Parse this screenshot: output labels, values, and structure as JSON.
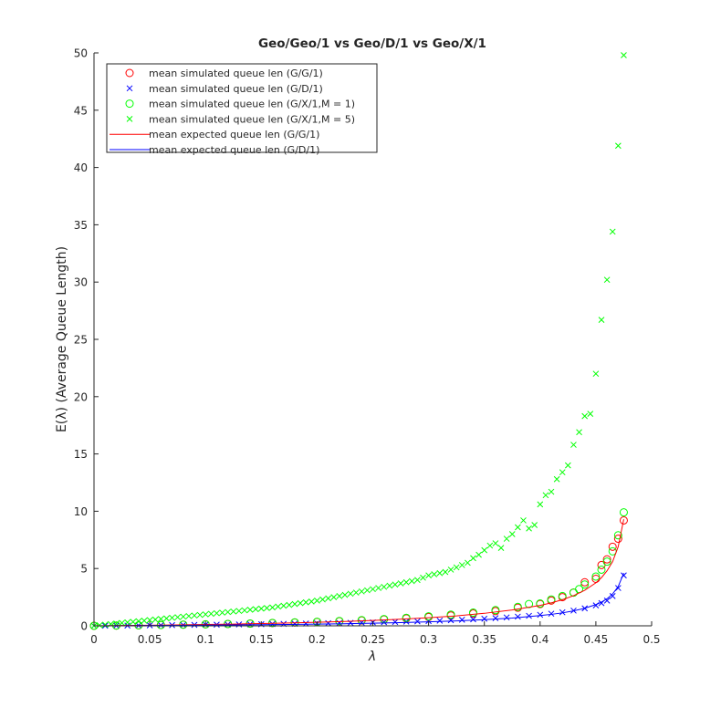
{
  "chart_data": {
    "type": "scatter",
    "title": "Geo/Geo/1 vs Geo/D/1 vs Geo/X/1",
    "xlabel": "λ",
    "ylabel": "E(λ) (Average Queue Length)",
    "xlim": [
      0,
      0.5
    ],
    "ylim": [
      0,
      50
    ],
    "xticks": [
      0,
      0.05,
      0.1,
      0.15,
      0.2,
      0.25,
      0.3,
      0.35,
      0.4,
      0.45,
      0.5
    ],
    "yticks": [
      0,
      5,
      10,
      15,
      20,
      25,
      30,
      35,
      40,
      45,
      50
    ],
    "grid": false,
    "legend_position": "top-left",
    "series": [
      {
        "name": "mean simulated queue len (G/G/1)",
        "marker": "circle",
        "color": "#ff0000",
        "x": [
          0,
          0.02,
          0.04,
          0.06,
          0.08,
          0.1,
          0.12,
          0.14,
          0.16,
          0.18,
          0.2,
          0.22,
          0.24,
          0.26,
          0.28,
          0.3,
          0.32,
          0.34,
          0.36,
          0.38,
          0.4,
          0.41,
          0.42,
          0.43,
          0.44,
          0.45,
          0.455,
          0.46,
          0.465,
          0.47,
          0.475
        ],
        "y": [
          0.0,
          0.02,
          0.04,
          0.07,
          0.1,
          0.13,
          0.16,
          0.19,
          0.24,
          0.29,
          0.34,
          0.4,
          0.47,
          0.56,
          0.65,
          0.77,
          0.9,
          1.07,
          1.28,
          1.58,
          1.9,
          2.2,
          2.5,
          2.9,
          3.8,
          4.1,
          5.3,
          5.8,
          6.9,
          7.6,
          9.2
        ]
      },
      {
        "name": "mean simulated queue len (G/D/1)",
        "marker": "x",
        "color": "#0000ff",
        "x": [
          0,
          0.01,
          0.02,
          0.03,
          0.04,
          0.05,
          0.06,
          0.07,
          0.08,
          0.09,
          0.1,
          0.11,
          0.12,
          0.13,
          0.14,
          0.15,
          0.16,
          0.17,
          0.18,
          0.19,
          0.2,
          0.21,
          0.22,
          0.23,
          0.24,
          0.25,
          0.26,
          0.27,
          0.28,
          0.29,
          0.3,
          0.31,
          0.32,
          0.33,
          0.34,
          0.35,
          0.36,
          0.37,
          0.38,
          0.39,
          0.4,
          0.41,
          0.42,
          0.43,
          0.44,
          0.45,
          0.455,
          0.46,
          0.465,
          0.47,
          0.475
        ],
        "y": [
          0.0,
          0.01,
          0.02,
          0.02,
          0.03,
          0.04,
          0.05,
          0.06,
          0.07,
          0.08,
          0.09,
          0.1,
          0.11,
          0.12,
          0.13,
          0.14,
          0.16,
          0.17,
          0.18,
          0.2,
          0.21,
          0.23,
          0.24,
          0.26,
          0.28,
          0.3,
          0.32,
          0.34,
          0.37,
          0.39,
          0.42,
          0.45,
          0.49,
          0.53,
          0.57,
          0.62,
          0.67,
          0.73,
          0.8,
          0.87,
          0.96,
          1.06,
          1.18,
          1.33,
          1.52,
          1.78,
          1.98,
          2.2,
          2.6,
          3.3,
          4.4
        ]
      },
      {
        "name": "mean simulated queue len (G/X/1,M = 1)",
        "marker": "circle",
        "color": "#00ff00",
        "x": [
          0,
          0.02,
          0.04,
          0.06,
          0.08,
          0.1,
          0.12,
          0.14,
          0.16,
          0.18,
          0.2,
          0.22,
          0.24,
          0.26,
          0.28,
          0.3,
          0.32,
          0.34,
          0.36,
          0.38,
          0.39,
          0.4,
          0.41,
          0.42,
          0.43,
          0.435,
          0.44,
          0.45,
          0.455,
          0.46,
          0.465,
          0.47,
          0.475
        ],
        "y": [
          0.0,
          0.02,
          0.04,
          0.07,
          0.1,
          0.13,
          0.16,
          0.2,
          0.25,
          0.3,
          0.35,
          0.42,
          0.5,
          0.59,
          0.7,
          0.83,
          0.98,
          1.15,
          1.37,
          1.65,
          1.9,
          1.95,
          2.3,
          2.6,
          2.9,
          3.2,
          3.6,
          4.3,
          4.9,
          5.6,
          6.5,
          7.9,
          9.9
        ]
      },
      {
        "name": "mean simulated queue len (G/X/1,M = 5)",
        "marker": "x",
        "color": "#00ff00",
        "x": [
          0,
          0.005,
          0.01,
          0.015,
          0.02,
          0.025,
          0.03,
          0.035,
          0.04,
          0.045,
          0.05,
          0.055,
          0.06,
          0.065,
          0.07,
          0.075,
          0.08,
          0.085,
          0.09,
          0.095,
          0.1,
          0.105,
          0.11,
          0.115,
          0.12,
          0.125,
          0.13,
          0.135,
          0.14,
          0.145,
          0.15,
          0.155,
          0.16,
          0.165,
          0.17,
          0.175,
          0.18,
          0.185,
          0.19,
          0.195,
          0.2,
          0.205,
          0.21,
          0.215,
          0.22,
          0.225,
          0.23,
          0.235,
          0.24,
          0.245,
          0.25,
          0.255,
          0.26,
          0.265,
          0.27,
          0.275,
          0.28,
          0.285,
          0.29,
          0.295,
          0.3,
          0.305,
          0.31,
          0.315,
          0.32,
          0.325,
          0.33,
          0.335,
          0.34,
          0.345,
          0.35,
          0.355,
          0.36,
          0.365,
          0.37,
          0.375,
          0.38,
          0.385,
          0.39,
          0.395,
          0.4,
          0.405,
          0.41,
          0.415,
          0.42,
          0.425,
          0.43,
          0.435,
          0.44,
          0.445,
          0.45,
          0.455,
          0.46,
          0.465,
          0.47,
          0.475
        ],
        "y": [
          0.0,
          0.05,
          0.1,
          0.15,
          0.2,
          0.25,
          0.3,
          0.35,
          0.4,
          0.45,
          0.5,
          0.55,
          0.6,
          0.65,
          0.7,
          0.75,
          0.8,
          0.85,
          0.9,
          0.95,
          1.0,
          1.05,
          1.1,
          1.15,
          1.2,
          1.25,
          1.3,
          1.35,
          1.4,
          1.45,
          1.5,
          1.55,
          1.6,
          1.68,
          1.75,
          1.82,
          1.9,
          1.98,
          2.05,
          2.12,
          2.2,
          2.3,
          2.4,
          2.5,
          2.6,
          2.7,
          2.8,
          2.9,
          3.0,
          3.1,
          3.2,
          3.3,
          3.4,
          3.5,
          3.6,
          3.7,
          3.8,
          3.9,
          4.0,
          4.2,
          4.4,
          4.5,
          4.6,
          4.7,
          4.9,
          5.1,
          5.3,
          5.5,
          5.9,
          6.2,
          6.6,
          7.0,
          7.2,
          6.8,
          7.6,
          8.0,
          8.6,
          9.2,
          8.5,
          8.8,
          10.6,
          11.4,
          11.7,
          12.8,
          13.4,
          14.0,
          15.8,
          16.9,
          18.3,
          18.5,
          22.0,
          26.7,
          30.2,
          34.4,
          41.9,
          49.8
        ]
      },
      {
        "name": "mean expected queue len (G/G/1)",
        "marker": "line",
        "color": "#ff0000",
        "x": [
          0,
          0.025,
          0.05,
          0.075,
          0.1,
          0.125,
          0.15,
          0.175,
          0.2,
          0.225,
          0.25,
          0.275,
          0.3,
          0.325,
          0.35,
          0.375,
          0.4,
          0.41,
          0.42,
          0.43,
          0.44,
          0.45,
          0.455,
          0.46,
          0.465,
          0.47,
          0.475
        ],
        "y": [
          0,
          0.03,
          0.05,
          0.08,
          0.12,
          0.15,
          0.2,
          0.25,
          0.31,
          0.38,
          0.47,
          0.58,
          0.71,
          0.87,
          1.09,
          1.38,
          1.78,
          2.0,
          2.28,
          2.63,
          3.1,
          3.75,
          4.2,
          4.8,
          5.6,
          6.9,
          9.3
        ]
      },
      {
        "name": "mean expected queue len (G/D/1)",
        "marker": "line",
        "color": "#0000ff",
        "x": [
          0,
          0.025,
          0.05,
          0.075,
          0.1,
          0.125,
          0.15,
          0.175,
          0.2,
          0.225,
          0.25,
          0.275,
          0.3,
          0.325,
          0.35,
          0.375,
          0.4,
          0.41,
          0.42,
          0.43,
          0.44,
          0.45,
          0.455,
          0.46,
          0.465,
          0.47,
          0.475
        ],
        "y": [
          0,
          0.01,
          0.03,
          0.04,
          0.06,
          0.08,
          0.1,
          0.12,
          0.15,
          0.18,
          0.23,
          0.28,
          0.35,
          0.43,
          0.54,
          0.68,
          0.9,
          1.0,
          1.13,
          1.3,
          1.53,
          1.85,
          2.07,
          2.36,
          2.78,
          3.42,
          4.6
        ]
      }
    ]
  }
}
